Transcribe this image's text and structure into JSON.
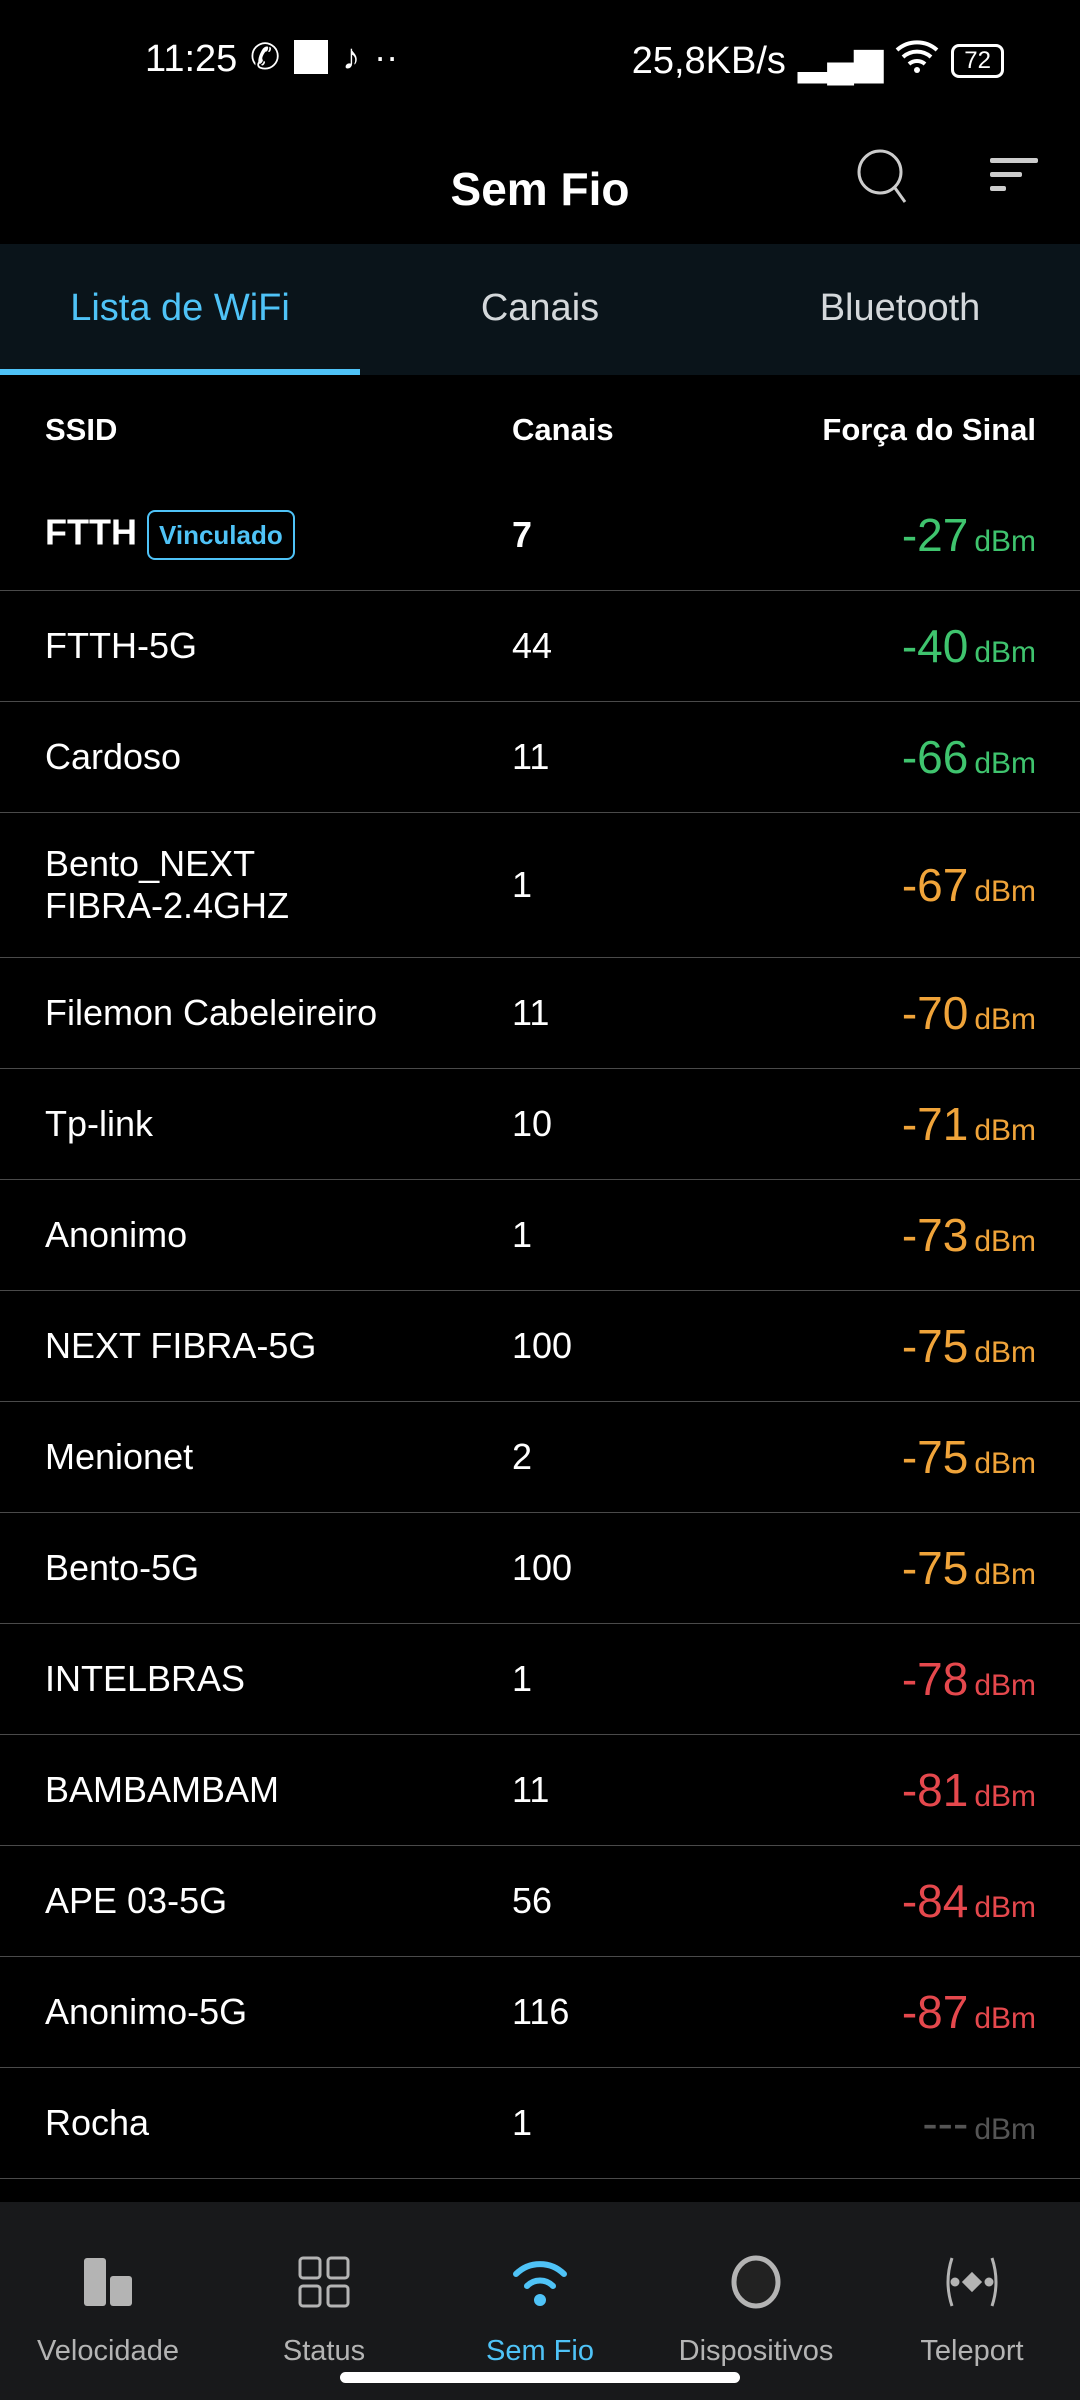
{
  "status_bar": {
    "time": "11:25",
    "net_speed": "25,8KB/s",
    "battery": "72"
  },
  "header": {
    "title": "Sem Fio"
  },
  "tabs": [
    {
      "label": "Lista de WiFi",
      "active": true
    },
    {
      "label": "Canais"
    },
    {
      "label": "Bluetooth"
    }
  ],
  "table": {
    "headers": {
      "ssid": "SSID",
      "channel": "Canais",
      "signal": "Força do Sinal"
    },
    "unit": "dBm",
    "linked_badge": "Vinculado",
    "rows": [
      {
        "ssid": "FTTH",
        "channel": "7",
        "signal": "-27",
        "linked": true,
        "color": "#3fc46e"
      },
      {
        "ssid": "FTTH-5G",
        "channel": "44",
        "signal": "-40",
        "color": "#3fc46e"
      },
      {
        "ssid": "Cardoso",
        "channel": "11",
        "signal": "-66",
        "color": "#3fc46e"
      },
      {
        "ssid": "Bento_NEXT FIBRA-2.4GHZ",
        "channel": "1",
        "signal": "-67",
        "color": "#f0a43a"
      },
      {
        "ssid": "Filemon Cabeleireiro",
        "channel": "11",
        "signal": "-70",
        "color": "#f0a43a"
      },
      {
        "ssid": "Tp-link",
        "channel": "10",
        "signal": "-71",
        "color": "#f0a43a"
      },
      {
        "ssid": "Anonimo",
        "channel": "1",
        "signal": "-73",
        "color": "#f0a43a"
      },
      {
        "ssid": "NEXT FIBRA-5G",
        "channel": "100",
        "signal": "-75",
        "color": "#f0a43a"
      },
      {
        "ssid": "Menionet",
        "channel": "2",
        "signal": "-75",
        "color": "#f0a43a"
      },
      {
        "ssid": "Bento-5G",
        "channel": "100",
        "signal": "-75",
        "color": "#f0a43a"
      },
      {
        "ssid": "INTELBRAS",
        "channel": "1",
        "signal": "-78",
        "color": "#e5484d"
      },
      {
        "ssid": "BAMBAMBAM",
        "channel": "11",
        "signal": "-81",
        "color": "#e5484d"
      },
      {
        "ssid": "APE 03-5G",
        "channel": "56",
        "signal": "-84",
        "color": "#e5484d"
      },
      {
        "ssid": "Anonimo-5G",
        "channel": "116",
        "signal": "-87",
        "color": "#e5484d"
      },
      {
        "ssid": "Rocha",
        "channel": "1",
        "signal": "---",
        "color": "#555555"
      }
    ]
  },
  "bottom_nav": [
    {
      "label": "Velocidade",
      "icon": "bar-chart-icon"
    },
    {
      "label": "Status",
      "icon": "grid-icon"
    },
    {
      "label": "Sem Fio",
      "icon": "wifi-icon",
      "active": true
    },
    {
      "label": "Dispositivos",
      "icon": "circle-icon"
    },
    {
      "label": "Teleport",
      "icon": "teleport-icon"
    }
  ],
  "colors": {
    "accent": "#4fc3f7",
    "good": "#3fc46e",
    "medium": "#f0a43a",
    "bad": "#e5484d"
  }
}
